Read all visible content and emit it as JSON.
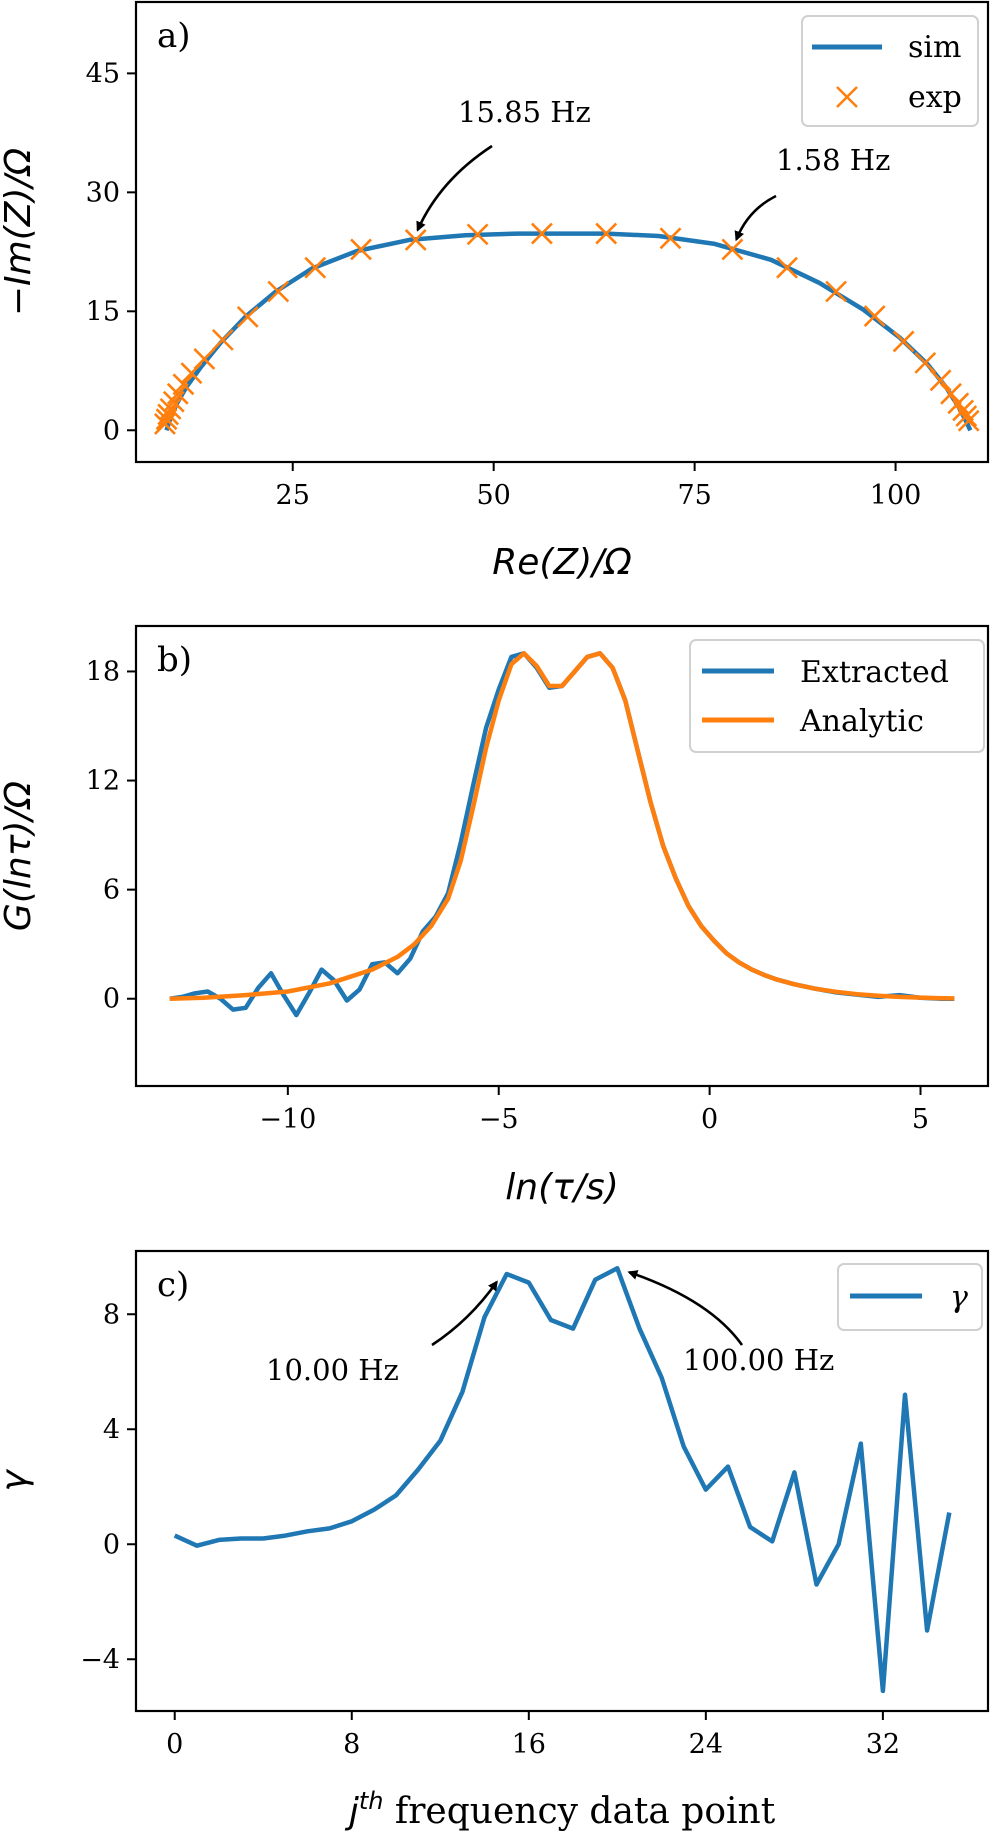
{
  "colors": {
    "blue": "#1f77b4",
    "orange": "#ff7f0e"
  },
  "chart_data": [
    {
      "type": "scatter",
      "panel_label": "a)",
      "xlabel": "Re(Z)/Ω",
      "ylabel": "−Im(Z)/Ω",
      "xlim": [
        5.5,
        111.5
      ],
      "ylim": [
        -4,
        54
      ],
      "xticks": [
        25,
        50,
        75,
        100
      ],
      "yticks": [
        0,
        15,
        30,
        45
      ],
      "legend_position": "top-right",
      "series": [
        {
          "name": "sim",
          "kind": "line",
          "color": "#1f77b4",
          "x": [
            9.3,
            9.8,
            10.6,
            11.8,
            13.6,
            16.0,
            19.1,
            22.9,
            27.4,
            33.0,
            39.5,
            46.5,
            53.0,
            58.5,
            64.0,
            70.5,
            77.5,
            84.5,
            90.5,
            96.0,
            100.5,
            104.0,
            106.3,
            107.8,
            108.7,
            109.3
          ],
          "y": [
            0.0,
            1.6,
            3.4,
            5.5,
            8.0,
            11.0,
            14.3,
            17.5,
            20.4,
            22.6,
            24.0,
            24.6,
            24.8,
            24.8,
            24.8,
            24.5,
            23.5,
            21.5,
            18.6,
            15.2,
            11.7,
            8.3,
            5.4,
            3.0,
            1.3,
            0.0
          ]
        },
        {
          "name": "exp",
          "kind": "marker-x",
          "color": "#ff7f0e",
          "x": [
            9.1,
            9.3,
            9.5,
            9.8,
            10.2,
            10.7,
            11.4,
            12.4,
            14.0,
            16.3,
            19.4,
            23.2,
            27.8,
            33.5,
            40.3,
            48.0,
            56.0,
            64.0,
            72.0,
            79.7,
            86.5,
            92.6,
            97.4,
            101.0,
            103.7,
            105.6,
            106.9,
            107.8,
            108.4,
            108.8,
            109.1
          ],
          "y": [
            0.8,
            1.4,
            2.0,
            2.7,
            3.6,
            4.6,
            5.8,
            7.2,
            9.0,
            11.4,
            14.3,
            17.5,
            20.5,
            22.8,
            24.0,
            24.7,
            24.8,
            24.8,
            24.2,
            22.8,
            20.5,
            17.5,
            14.4,
            11.2,
            8.5,
            6.3,
            4.6,
            3.4,
            2.5,
            1.8,
            1.2
          ]
        }
      ],
      "annotations": [
        {
          "text": "15.85 Hz",
          "x": 40.3,
          "y": 24.0
        },
        {
          "text": "1.58 Hz",
          "x": 79.7,
          "y": 22.8
        }
      ]
    },
    {
      "type": "line",
      "panel_label": "b)",
      "xlabel": "ln(τ/s)",
      "ylabel": "G(lnτ)/Ω",
      "xlim": [
        -13.6,
        6.6
      ],
      "ylim": [
        -4.8,
        20.5
      ],
      "xticks": [
        -10,
        -5,
        0,
        5
      ],
      "yticks": [
        0,
        6,
        12,
        18
      ],
      "legend_position": "top-right",
      "series": [
        {
          "name": "Extracted",
          "color": "#1f77b4",
          "x": [
            -12.8,
            -12.5,
            -12.2,
            -11.9,
            -11.6,
            -11.3,
            -11.0,
            -10.7,
            -10.4,
            -10.1,
            -9.8,
            -9.5,
            -9.2,
            -8.9,
            -8.6,
            -8.3,
            -8.0,
            -7.7,
            -7.4,
            -7.1,
            -6.8,
            -6.5,
            -6.2,
            -5.9,
            -5.6,
            -5.3,
            -5.0,
            -4.7,
            -4.4,
            -4.1,
            -3.8,
            -3.5,
            -3.2,
            -2.9,
            -2.6,
            -2.3,
            -2.0,
            -1.7,
            -1.4,
            -1.1,
            -0.8,
            -0.5,
            -0.2,
            0.1,
            0.4,
            0.7,
            1.0,
            1.3,
            1.6,
            2.0,
            2.5,
            3.0,
            3.5,
            4.0,
            4.5,
            5.0,
            5.5,
            5.8
          ],
          "y": [
            0.0,
            0.1,
            0.3,
            0.4,
            0.0,
            -0.6,
            -0.5,
            0.6,
            1.4,
            0.2,
            -0.9,
            0.3,
            1.6,
            1.0,
            -0.1,
            0.5,
            1.9,
            2.0,
            1.4,
            2.2,
            3.7,
            4.5,
            5.8,
            8.6,
            11.8,
            14.9,
            17.0,
            18.8,
            19.0,
            18.2,
            17.1,
            17.2,
            18.0,
            18.8,
            19.0,
            18.2,
            16.4,
            13.6,
            10.8,
            8.4,
            6.6,
            5.1,
            4.0,
            3.2,
            2.5,
            2.0,
            1.6,
            1.3,
            1.05,
            0.8,
            0.55,
            0.35,
            0.22,
            0.1,
            0.2,
            0.05,
            0.0,
            0.0
          ]
        },
        {
          "name": "Analytic",
          "color": "#ff7f0e",
          "x": [
            -12.8,
            -12.0,
            -11.0,
            -10.0,
            -9.0,
            -8.0,
            -7.4,
            -7.0,
            -6.6,
            -6.2,
            -5.9,
            -5.6,
            -5.3,
            -5.0,
            -4.7,
            -4.4,
            -4.1,
            -3.8,
            -3.5,
            -3.2,
            -2.9,
            -2.6,
            -2.3,
            -2.0,
            -1.7,
            -1.4,
            -1.1,
            -0.8,
            -0.5,
            -0.2,
            0.1,
            0.4,
            0.7,
            1.0,
            1.3,
            1.6,
            2.0,
            2.5,
            3.0,
            3.5,
            4.0,
            4.5,
            5.0,
            5.5,
            5.8
          ],
          "y": [
            0.0,
            0.05,
            0.2,
            0.4,
            0.85,
            1.6,
            2.3,
            3.0,
            4.0,
            5.5,
            7.6,
            10.6,
            13.8,
            16.4,
            18.4,
            19.0,
            18.3,
            17.2,
            17.2,
            18.0,
            18.8,
            19.0,
            18.2,
            16.4,
            13.6,
            10.8,
            8.4,
            6.6,
            5.1,
            4.0,
            3.2,
            2.5,
            2.0,
            1.6,
            1.3,
            1.05,
            0.8,
            0.55,
            0.38,
            0.25,
            0.16,
            0.1,
            0.06,
            0.03,
            0.02
          ]
        }
      ]
    },
    {
      "type": "line",
      "panel_label": "c)",
      "xlabel": "j^th frequency data point",
      "xlabel_parts": {
        "base": "j",
        "sup": "th",
        "rest": " frequency data point"
      },
      "ylabel": "γ",
      "xlim": [
        -1.75,
        36.75
      ],
      "ylim": [
        -5.8,
        10.2
      ],
      "xticks": [
        0,
        8,
        16,
        24,
        32
      ],
      "yticks": [
        -4,
        0,
        4,
        8
      ],
      "legend_position": "top-right",
      "series": [
        {
          "name": "γ",
          "color": "#1f77b4",
          "x": [
            0,
            1,
            2,
            3,
            4,
            5,
            6,
            7,
            8,
            9,
            10,
            11,
            12,
            13,
            14,
            15,
            16,
            17,
            18,
            19,
            20,
            21,
            22,
            23,
            24,
            25,
            26,
            27,
            28,
            29,
            30,
            31,
            32,
            33,
            34,
            35
          ],
          "y": [
            0.3,
            -0.05,
            0.15,
            0.2,
            0.2,
            0.3,
            0.45,
            0.55,
            0.8,
            1.2,
            1.7,
            2.6,
            3.6,
            5.3,
            7.9,
            9.4,
            9.1,
            7.8,
            7.5,
            9.2,
            9.6,
            7.5,
            5.8,
            3.4,
            1.9,
            2.7,
            0.6,
            0.1,
            2.5,
            -1.4,
            0.0,
            3.5,
            -5.1,
            5.2,
            -3.0,
            1.1
          ]
        }
      ],
      "annotations": [
        {
          "text": "10.00 Hz",
          "x": 15,
          "y": 9.4
        },
        {
          "text": "100.00 Hz",
          "x": 20,
          "y": 9.6
        }
      ]
    }
  ]
}
